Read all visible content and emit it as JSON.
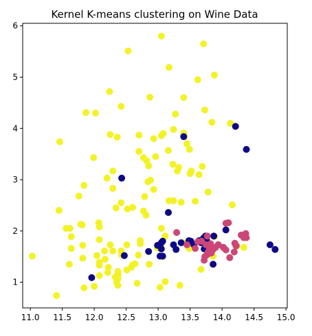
{
  "chart_data": {
    "type": "scatter",
    "title": "Kernel K-means clustering on Wine Data",
    "xlabel": "",
    "ylabel": "",
    "xlim": [
      10.88,
      15.02
    ],
    "ylim": [
      0.5,
      6.05
    ],
    "xticks": [
      11.0,
      11.5,
      12.0,
      12.5,
      13.0,
      13.5,
      14.0,
      14.5,
      15.0
    ],
    "yticks": [
      1,
      2,
      3,
      4,
      5,
      6
    ],
    "xtick_labels": [
      "11.0",
      "11.5",
      "12.0",
      "12.5",
      "13.0",
      "13.5",
      "14.0",
      "14.5",
      "15.0"
    ],
    "ytick_labels": [
      "1",
      "2",
      "3",
      "4",
      "5",
      "6"
    ],
    "grid": false,
    "legend": "none",
    "series": [
      {
        "color": "#f2f227",
        "points": [
          [
            11.03,
            1.51
          ],
          [
            11.41,
            0.74
          ],
          [
            11.45,
            2.4
          ],
          [
            11.46,
            3.74
          ],
          [
            11.56,
            2.05
          ],
          [
            11.61,
            1.35
          ],
          [
            11.62,
            2.05
          ],
          [
            11.64,
            1.89
          ],
          [
            11.64,
            1.66
          ],
          [
            11.76,
            2.68
          ],
          [
            11.79,
            2.13
          ],
          [
            11.81,
            2.12
          ],
          [
            11.82,
            1.72
          ],
          [
            11.84,
            0.89
          ],
          [
            11.84,
            2.89
          ],
          [
            11.82,
            1.47
          ],
          [
            11.87,
            4.31
          ],
          [
            11.96,
            1.09
          ],
          [
            12.0,
            0.92
          ],
          [
            12.02,
            4.3
          ],
          [
            11.99,
            3.43
          ],
          [
            12.04,
            1.52
          ],
          [
            12.07,
            2.16
          ],
          [
            12.08,
            2.08
          ],
          [
            12.08,
            1.83
          ],
          [
            12.08,
            1.33
          ],
          [
            12.08,
            1.13
          ],
          [
            12.08,
            1.39
          ],
          [
            12.16,
            1.61
          ],
          [
            12.17,
            1.45
          ],
          [
            12.2,
            3.03
          ],
          [
            12.21,
            1.19
          ],
          [
            12.22,
            1.29
          ],
          [
            12.25,
            1.73
          ],
          [
            12.25,
            3.88
          ],
          [
            12.24,
            4.72
          ],
          [
            12.29,
            1.61
          ],
          [
            12.29,
            2.83
          ],
          [
            12.29,
            3.17
          ],
          [
            12.33,
            1.1
          ],
          [
            12.34,
            2.45
          ],
          [
            12.35,
            1.0
          ],
          [
            12.36,
            3.83
          ],
          [
            12.37,
            0.94
          ],
          [
            12.37,
            1.07
          ],
          [
            12.37,
            1.13
          ],
          [
            12.37,
            1.17
          ],
          [
            12.37,
            1.21
          ],
          [
            12.42,
            1.61
          ],
          [
            12.42,
            2.55
          ],
          [
            12.42,
            4.43
          ],
          [
            12.43,
            1.53
          ],
          [
            12.47,
            1.52
          ],
          [
            12.51,
            1.24
          ],
          [
            12.51,
            1.73
          ],
          [
            12.52,
            2.43
          ],
          [
            12.53,
            5.51
          ],
          [
            12.58,
            1.29
          ],
          [
            12.6,
            1.34
          ],
          [
            12.6,
            2.46
          ],
          [
            12.64,
            1.36
          ],
          [
            12.67,
            0.98
          ],
          [
            12.69,
            1.53
          ],
          [
            12.7,
            3.55
          ],
          [
            12.7,
            3.87
          ],
          [
            12.72,
            1.75
          ],
          [
            12.72,
            1.81
          ],
          [
            12.77,
            2.39
          ],
          [
            12.77,
            3.43
          ],
          [
            12.79,
            2.67
          ],
          [
            12.81,
            2.31
          ],
          [
            12.82,
            3.37
          ],
          [
            12.84,
            2.96
          ],
          [
            12.85,
            1.6
          ],
          [
            12.85,
            3.27
          ],
          [
            12.86,
            1.35
          ],
          [
            12.87,
            4.61
          ],
          [
            12.88,
            2.99
          ],
          [
            12.93,
            2.81
          ],
          [
            12.93,
            3.8
          ],
          [
            12.96,
            3.45
          ],
          [
            12.99,
            1.67
          ],
          [
            13.03,
            0.9
          ],
          [
            13.05,
            1.65
          ],
          [
            13.05,
            1.73
          ],
          [
            13.05,
            1.77
          ],
          [
            13.05,
            2.05
          ],
          [
            13.05,
            3.86
          ],
          [
            13.05,
            5.8
          ],
          [
            13.07,
            1.5
          ],
          [
            13.08,
            3.9
          ],
          [
            13.11,
            1.01
          ],
          [
            13.11,
            1.9
          ],
          [
            13.16,
            2.36
          ],
          [
            13.16,
            3.57
          ],
          [
            13.17,
            2.59
          ],
          [
            13.17,
            5.19
          ],
          [
            13.23,
            3.3
          ],
          [
            13.24,
            2.59
          ],
          [
            13.24,
            3.98
          ],
          [
            13.27,
            4.28
          ],
          [
            13.28,
            1.64
          ],
          [
            13.29,
            1.97
          ],
          [
            13.3,
            3.17
          ],
          [
            13.32,
            3.24
          ],
          [
            13.34,
            0.94
          ],
          [
            13.36,
            2.56
          ],
          [
            13.39,
            1.77
          ],
          [
            13.4,
            3.91
          ],
          [
            13.4,
            4.6
          ],
          [
            13.41,
            3.84
          ],
          [
            13.45,
            3.7
          ],
          [
            13.48,
            1.67
          ],
          [
            13.48,
            1.81
          ],
          [
            13.49,
            1.66
          ],
          [
            13.49,
            3.59
          ],
          [
            13.5,
            3.12
          ],
          [
            13.52,
            3.17
          ],
          [
            13.56,
            1.71
          ],
          [
            13.58,
            1.66
          ],
          [
            13.58,
            2.58
          ],
          [
            13.62,
            4.95
          ],
          [
            13.64,
            3.1
          ],
          [
            13.67,
            1.25
          ],
          [
            13.68,
            1.83
          ],
          [
            13.69,
            3.26
          ],
          [
            13.71,
            1.86
          ],
          [
            13.71,
            5.65
          ],
          [
            13.73,
            1.5
          ],
          [
            13.73,
            4.36
          ],
          [
            13.74,
            1.67
          ],
          [
            13.76,
            1.53
          ],
          [
            13.78,
            2.76
          ],
          [
            13.83,
            1.57
          ],
          [
            13.84,
            4.12
          ],
          [
            13.86,
            1.51
          ],
          [
            13.87,
            1.9
          ],
          [
            13.88,
            1.89
          ],
          [
            13.88,
            5.04
          ],
          [
            13.94,
            1.73
          ],
          [
            14.1,
            2.16
          ],
          [
            14.12,
            1.48
          ],
          [
            14.13,
            4.1
          ],
          [
            14.16,
            2.51
          ],
          [
            14.2,
            1.76
          ],
          [
            14.21,
            4.04
          ],
          [
            14.22,
            1.7
          ],
          [
            14.23,
            1.71
          ],
          [
            14.3,
            1.92
          ],
          [
            14.34,
            1.68
          ]
        ]
      },
      {
        "color": "#0d0887",
        "points": [
          [
            11.96,
            1.09
          ],
          [
            12.47,
            1.52
          ],
          [
            12.43,
            3.03
          ],
          [
            12.85,
            1.6
          ],
          [
            13.03,
            1.51
          ],
          [
            12.99,
            1.72
          ],
          [
            13.05,
            1.65
          ],
          [
            13.07,
            1.8
          ],
          [
            13.05,
            1.77
          ],
          [
            13.07,
            1.51
          ],
          [
            13.16,
            2.36
          ],
          [
            13.24,
            1.73
          ],
          [
            13.28,
            1.64
          ],
          [
            13.36,
            1.77
          ],
          [
            13.4,
            3.84
          ],
          [
            13.48,
            1.81
          ],
          [
            13.51,
            1.8
          ],
          [
            13.56,
            1.73
          ],
          [
            13.64,
            1.81
          ],
          [
            13.67,
            1.77
          ],
          [
            13.71,
            1.86
          ],
          [
            13.72,
            1.65
          ],
          [
            13.74,
            1.9
          ],
          [
            13.76,
            1.81
          ],
          [
            13.77,
            1.71
          ],
          [
            13.83,
            1.57
          ],
          [
            13.86,
            1.35
          ],
          [
            13.87,
            1.9
          ],
          [
            13.94,
            1.73
          ],
          [
            14.02,
            1.68
          ],
          [
            14.06,
            2.02
          ],
          [
            14.21,
            4.04
          ],
          [
            14.22,
            1.71
          ],
          [
            14.38,
            3.59
          ],
          [
            14.75,
            1.73
          ],
          [
            14.83,
            1.64
          ]
        ]
      },
      {
        "color": "#cc4778",
        "points": [
          [
            13.29,
            1.97
          ],
          [
            13.45,
            1.73
          ],
          [
            13.58,
            1.66
          ],
          [
            13.62,
            1.79
          ],
          [
            13.68,
            1.8
          ],
          [
            13.72,
            1.43
          ],
          [
            13.73,
            1.5
          ],
          [
            13.75,
            1.73
          ],
          [
            13.76,
            1.53
          ],
          [
            13.77,
            1.9
          ],
          [
            13.78,
            1.59
          ],
          [
            13.8,
            1.68
          ],
          [
            13.81,
            1.72
          ],
          [
            13.82,
            1.75
          ],
          [
            13.83,
            1.57
          ],
          [
            13.86,
            1.64
          ],
          [
            13.9,
            1.68
          ],
          [
            13.94,
            1.73
          ],
          [
            14.02,
            1.68
          ],
          [
            14.06,
            1.63
          ],
          [
            14.06,
            2.15
          ],
          [
            14.1,
            2.16
          ],
          [
            14.12,
            1.48
          ],
          [
            14.19,
            1.59
          ],
          [
            14.2,
            1.76
          ],
          [
            14.22,
            1.71
          ],
          [
            14.3,
            1.92
          ],
          [
            14.34,
            1.87
          ],
          [
            14.37,
            1.95
          ],
          [
            14.38,
            1.87
          ]
        ]
      }
    ]
  }
}
